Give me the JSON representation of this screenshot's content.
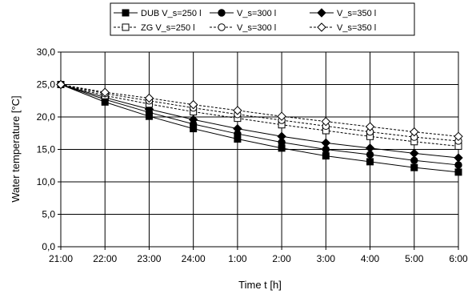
{
  "chart_data": {
    "type": "line",
    "xlabel": "Time t [h]",
    "ylabel": "Water temperature [°C]",
    "ylim": [
      0,
      30
    ],
    "y_ticks": [
      "0,0",
      "5,0",
      "10,0",
      "15,0",
      "20,0",
      "25,0",
      "30,0"
    ],
    "categories": [
      "21:00",
      "22:00",
      "23:00",
      "24:00",
      "1:00",
      "2:00",
      "3:00",
      "4:00",
      "5:00",
      "6:00"
    ],
    "grid": true,
    "legend_position": "top",
    "series": [
      {
        "name": "DUB V_s=250 l",
        "style": "solid",
        "marker": "square-filled",
        "color": "#000000",
        "values": [
          25.0,
          22.3,
          20.1,
          18.2,
          16.6,
          15.2,
          14.0,
          13.1,
          12.2,
          11.5
        ]
      },
      {
        "name": "V_s=300 l",
        "style": "solid",
        "marker": "circle-filled",
        "color": "#000000",
        "values": [
          25.0,
          22.7,
          20.7,
          18.9,
          17.4,
          16.1,
          15.0,
          14.2,
          13.3,
          12.6
        ]
      },
      {
        "name": "V_s=350 l",
        "style": "solid",
        "marker": "diamond-filled",
        "color": "#000000",
        "values": [
          25.0,
          23.0,
          21.2,
          19.6,
          18.2,
          17.0,
          16.0,
          15.2,
          14.4,
          13.7
        ]
      },
      {
        "name": "ZG V_s=250 l",
        "style": "dashed",
        "marker": "square-open",
        "color": "#000000",
        "values": [
          25.0,
          23.3,
          22.0,
          20.8,
          19.8,
          18.8,
          17.9,
          17.0,
          16.2,
          15.5
        ]
      },
      {
        "name": "V_s=300 l",
        "style": "dashed",
        "marker": "circle-open",
        "color": "#000000",
        "values": [
          25.0,
          23.6,
          22.5,
          21.4,
          20.4,
          19.5,
          18.6,
          17.7,
          16.9,
          16.3
        ]
      },
      {
        "name": "V_s=350 l",
        "style": "dashed",
        "marker": "diamond-open",
        "color": "#000000",
        "values": [
          25.0,
          23.8,
          22.9,
          21.9,
          21.0,
          20.1,
          19.3,
          18.5,
          17.7,
          17.0
        ]
      }
    ]
  }
}
